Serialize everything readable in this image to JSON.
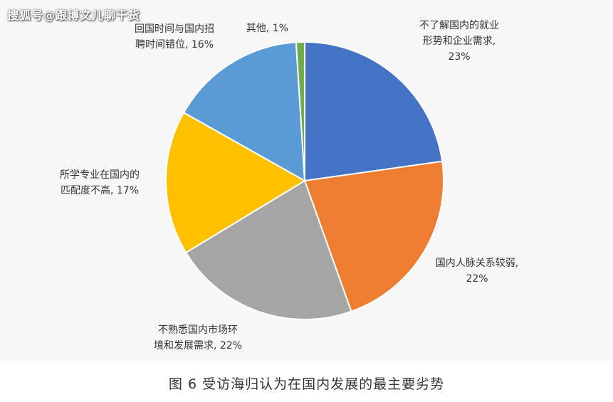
{
  "watermark": "搜狐号@跟博文儿聊干货",
  "caption": "图 6  受访海归认为在国内发展的最主要劣势",
  "chart_data": {
    "type": "pie",
    "slices": [
      {
        "lines": [
          "不了解国内的就业",
          "形势和企业需求,",
          "23%"
        ],
        "value": 23,
        "color": "#4472c4"
      },
      {
        "lines": [
          "国内人脉关系较弱,",
          "22%"
        ],
        "value": 22,
        "color": "#ed7d31"
      },
      {
        "lines": [
          "不熟悉国内市场环",
          "境和发展需求, 22%"
        ],
        "value": 22,
        "color": "#a5a5a5"
      },
      {
        "lines": [
          "所学专业在国内的",
          "匹配度不高, 17%"
        ],
        "value": 17,
        "color": "#ffc000"
      },
      {
        "lines": [
          "回国时间与国内招",
          "聘时间错位, 16%"
        ],
        "value": 16,
        "color": "#5b9bd5"
      },
      {
        "lines": [
          "其他, 1%"
        ],
        "value": 1,
        "color": "#70ad47"
      }
    ]
  }
}
